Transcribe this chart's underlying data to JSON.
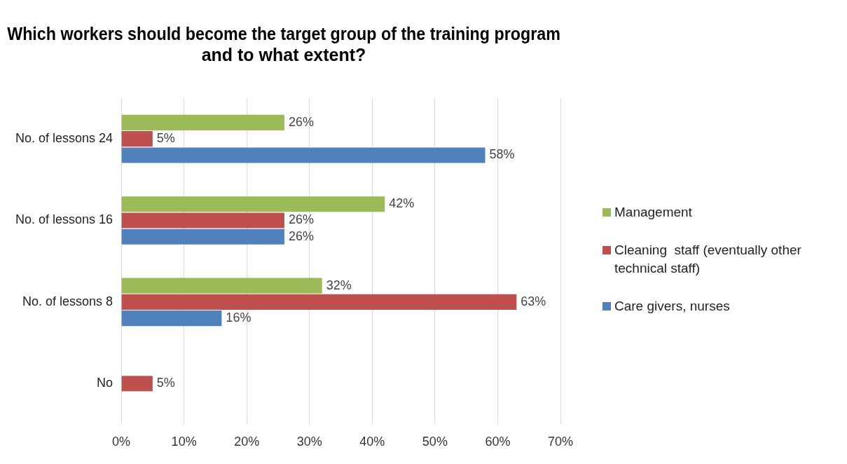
{
  "chart_data": {
    "type": "bar",
    "orientation": "horizontal",
    "title": "Which workers should become the target group of the training program and to what extent?",
    "categories": [
      "No. of lessons 24",
      "No. of lessons 16",
      "No. of lessons 8",
      "No"
    ],
    "series": [
      {
        "name": "Management",
        "color": "#9bbb59",
        "values": [
          26,
          42,
          32,
          null
        ],
        "value_labels": [
          "26%",
          "42%",
          "32%",
          null
        ]
      },
      {
        "name": "Cleaning  staff (eventually other technical staff)",
        "color": "#c0504d",
        "values": [
          5,
          26,
          63,
          5
        ],
        "value_labels": [
          "5%",
          "26%",
          "63%",
          "5%"
        ]
      },
      {
        "name": "Care givers, nurses",
        "color": "#4f81bd",
        "values": [
          58,
          26,
          16,
          null
        ],
        "value_labels": [
          "58%",
          "26%",
          "16%",
          null
        ]
      }
    ],
    "xlim": [
      0,
      70
    ],
    "xticks": [
      {
        "value": 0,
        "label": "0%"
      },
      {
        "value": 10,
        "label": "10%"
      },
      {
        "value": 20,
        "label": "20%"
      },
      {
        "value": 30,
        "label": "30%"
      },
      {
        "value": 40,
        "label": "40%"
      },
      {
        "value": 50,
        "label": "50%"
      },
      {
        "value": 60,
        "label": "60%"
      },
      {
        "value": 70,
        "label": "70%"
      }
    ],
    "grid": "x",
    "legend": "right"
  }
}
